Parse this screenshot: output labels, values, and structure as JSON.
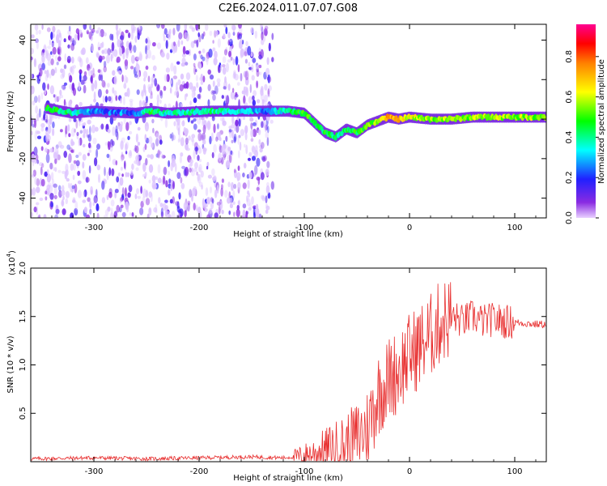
{
  "title": "C2E6.2024.011.07.07.G08",
  "chart_data": [
    {
      "type": "heatmap",
      "xlabel": "Height of straight line (km)",
      "ylabel": "Frequency (Hz)",
      "xlim": [
        -360,
        130
      ],
      "ylim": [
        -50,
        48
      ],
      "xticks": [
        -300,
        -200,
        -100,
        0,
        100
      ],
      "yticks": [
        -40,
        -20,
        0,
        20,
        40
      ],
      "colorbar": {
        "label": "Normalized spectral amplitude",
        "range": [
          0,
          0.96
        ],
        "ticks": [
          "0.0",
          "0.2",
          "0.4",
          "0.6",
          "0.8"
        ],
        "colormap": [
          "#ffffff",
          "#e8d0ff",
          "#8a2be2",
          "#2020ff",
          "#00ffff",
          "#00ff00",
          "#ffff00",
          "#ff8000",
          "#ff0000",
          "#ff00a0"
        ]
      },
      "ridge": [
        {
          "x": -340,
          "y": 5,
          "a": 0.45
        },
        {
          "x": -320,
          "y": 3,
          "a": 0.4
        },
        {
          "x": -300,
          "y": 4,
          "a": 0.25
        },
        {
          "x": -260,
          "y": 3,
          "a": 0.25
        },
        {
          "x": -245,
          "y": 4,
          "a": 0.45
        },
        {
          "x": -230,
          "y": 3,
          "a": 0.35
        },
        {
          "x": -190,
          "y": 4,
          "a": 0.4
        },
        {
          "x": -165,
          "y": 4,
          "a": 0.35
        },
        {
          "x": -130,
          "y": 4,
          "a": 0.25
        },
        {
          "x": -115,
          "y": 4,
          "a": 0.45
        },
        {
          "x": -100,
          "y": 3,
          "a": 0.5
        },
        {
          "x": -90,
          "y": -2,
          "a": 0.45
        },
        {
          "x": -80,
          "y": -7,
          "a": 0.45
        },
        {
          "x": -70,
          "y": -9,
          "a": 0.4
        },
        {
          "x": -60,
          "y": -5,
          "a": 0.45
        },
        {
          "x": -50,
          "y": -7,
          "a": 0.45
        },
        {
          "x": -40,
          "y": -3,
          "a": 0.5
        },
        {
          "x": -30,
          "y": -1,
          "a": 0.55
        },
        {
          "x": -20,
          "y": 1,
          "a": 0.75
        },
        {
          "x": -10,
          "y": 0,
          "a": 0.7
        },
        {
          "x": 0,
          "y": 1,
          "a": 0.6
        },
        {
          "x": 20,
          "y": 0,
          "a": 0.55
        },
        {
          "x": 40,
          "y": 0,
          "a": 0.55
        },
        {
          "x": 60,
          "y": 1,
          "a": 0.55
        },
        {
          "x": 80,
          "y": 1,
          "a": 0.6
        },
        {
          "x": 100,
          "y": 1,
          "a": 0.55
        },
        {
          "x": 130,
          "y": 1,
          "a": 0.55
        }
      ]
    },
    {
      "type": "line",
      "xlabel": "Height of straight line (km)",
      "ylabel": "SNR (10 * v/v)",
      "yscale_label": "(x10",
      "yscale_exponent": "4",
      "yscale_suffix": ")",
      "xlim": [
        -360,
        130
      ],
      "ylim": [
        0,
        2.0
      ],
      "xticks": [
        -300,
        -200,
        -100,
        0,
        100
      ],
      "yticks": [
        "0.5",
        "1.0",
        "1.5",
        "2.0"
      ],
      "series": [
        {
          "color": "#e83030",
          "x": [
            -360,
            -300,
            -250,
            -200,
            -150,
            -120,
            -100,
            -80,
            -60,
            -50,
            -40,
            -30,
            -20,
            -10,
            0,
            10,
            20,
            30,
            40,
            50,
            60,
            70,
            80,
            90,
            100,
            110,
            120,
            130
          ],
          "y": [
            0.03,
            0.04,
            0.03,
            0.04,
            0.05,
            0.04,
            0.06,
            0.12,
            0.18,
            0.25,
            0.35,
            0.7,
            0.85,
            0.95,
            1.1,
            1.2,
            1.3,
            1.45,
            1.5,
            1.45,
            1.5,
            1.45,
            1.47,
            1.45,
            1.44,
            1.43,
            1.42,
            1.42
          ]
        }
      ]
    }
  ]
}
